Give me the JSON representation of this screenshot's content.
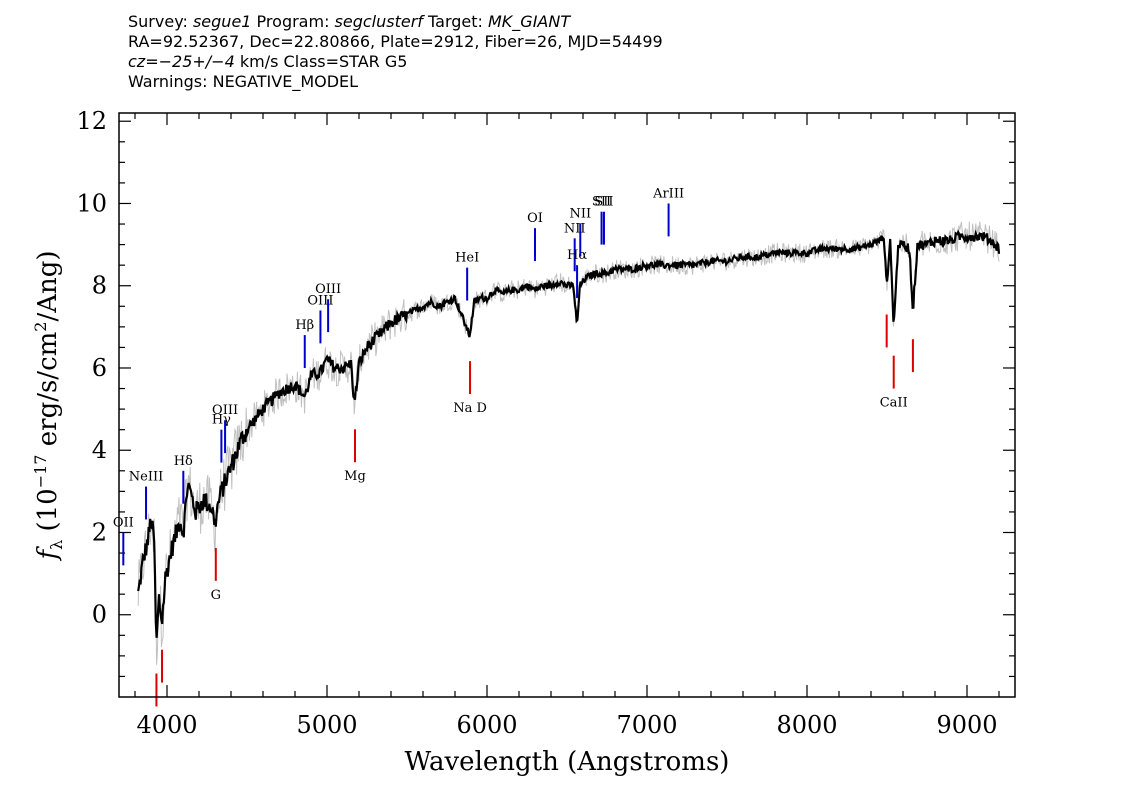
{
  "header": {
    "survey_label": "Survey: ",
    "survey": "segue1",
    "program_label": " Program: ",
    "program": "segclusterf",
    "target_label": " Target: ",
    "target": "MK_GIANT",
    "line2": "RA=92.52367, Dec=22.80866, Plate=2912, Fiber=26, MJD=54499",
    "cz_label": "cz=",
    "cz_value": "−25+/−4",
    "cz_rest": " km/s Class=STAR G5",
    "warnings": "Warnings: NEGATIVE_MODEL"
  },
  "chart_data": {
    "type": "line",
    "title": "",
    "xlabel": "Wavelength (Angstroms)",
    "ylabel": "f_λ (10^-17 erg/s/cm^2/Ang)",
    "xlim": [
      3700,
      9300
    ],
    "ylim": [
      -2,
      12.2
    ],
    "x_ticks": [
      4000,
      5000,
      6000,
      7000,
      8000,
      9000
    ],
    "y_ticks": [
      0,
      2,
      4,
      6,
      8,
      10,
      12
    ],
    "grid": false,
    "series": [
      {
        "kind": "model",
        "color": "#000000",
        "x": [
          3820,
          3850,
          3880,
          3900,
          3920,
          3933,
          3950,
          3968,
          3990,
          4030,
          4080,
          4102,
          4130,
          4180,
          4230,
          4280,
          4300,
          4320,
          4340,
          4380,
          4420,
          4470,
          4520,
          4600,
          4700,
          4800,
          4861,
          4900,
          4960,
          5000,
          5050,
          5100,
          5150,
          5172,
          5183,
          5200,
          5250,
          5300,
          5350,
          5400,
          5450,
          5500,
          5550,
          5600,
          5650,
          5700,
          5750,
          5800,
          5850,
          5890,
          5896,
          5920,
          5960,
          6000,
          6050,
          6100,
          6150,
          6200,
          6250,
          6300,
          6350,
          6400,
          6450,
          6500,
          6540,
          6563,
          6580,
          6620,
          6680,
          6750,
          6800,
          6900,
          7000,
          7100,
          7200,
          7300,
          7400,
          7500,
          7600,
          7700,
          7800,
          7900,
          8000,
          8100,
          8200,
          8300,
          8400,
          8450,
          8480,
          8498,
          8520,
          8542,
          8570,
          8600,
          8640,
          8662,
          8690,
          8750,
          8800,
          8850,
          8900,
          8950,
          9000,
          9050,
          9100,
          9150,
          9200
        ],
        "y": [
          0.5,
          1.3,
          1.8,
          2.3,
          1.8,
          -0.8,
          0.4,
          -0.2,
          0.9,
          1.6,
          2.3,
          2.0,
          3.2,
          2.5,
          2.8,
          2.6,
          2.2,
          2.7,
          3.0,
          3.4,
          3.8,
          4.3,
          4.6,
          5.0,
          5.4,
          5.6,
          5.3,
          5.8,
          5.9,
          6.2,
          6.0,
          6.0,
          6.1,
          5.1,
          5.5,
          6.1,
          6.5,
          6.7,
          6.9,
          7.1,
          7.2,
          7.3,
          7.4,
          7.5,
          7.6,
          7.5,
          7.6,
          7.7,
          7.2,
          6.8,
          6.9,
          7.6,
          7.7,
          7.7,
          7.9,
          7.8,
          7.9,
          7.9,
          8.0,
          7.9,
          8.0,
          8.0,
          8.1,
          8.0,
          8.0,
          7.0,
          8.0,
          8.2,
          8.3,
          8.3,
          8.4,
          8.4,
          8.5,
          8.5,
          8.5,
          8.5,
          8.6,
          8.6,
          8.7,
          8.7,
          8.8,
          8.8,
          8.8,
          8.9,
          8.9,
          8.9,
          9.0,
          9.1,
          9.2,
          8.0,
          9.1,
          7.0,
          9.0,
          9.0,
          8.9,
          7.4,
          9.0,
          9.0,
          9.1,
          9.1,
          9.1,
          9.2,
          9.2,
          9.2,
          9.2,
          9.1,
          8.9
        ]
      }
    ],
    "emission_lines": [
      {
        "name": "OII",
        "x": 3727
      },
      {
        "name": "NeIII",
        "x": 3869
      },
      {
        "name": "Hδ",
        "x": 4102
      },
      {
        "name": "Hγ",
        "x": 4340
      },
      {
        "name": "OIII",
        "x": 4363
      },
      {
        "name": "Hβ",
        "x": 4861
      },
      {
        "name": "OIII",
        "x": 4959
      },
      {
        "name": "OIII",
        "x": 5007
      },
      {
        "name": "HeI",
        "x": 5876
      },
      {
        "name": "OI",
        "x": 6300
      },
      {
        "name": "NII",
        "x": 6548
      },
      {
        "name": "Hα",
        "x": 6563
      },
      {
        "name": "NII",
        "x": 6583
      },
      {
        "name": "SII",
        "x": 6716
      },
      {
        "name": "SII",
        "x": 6731
      },
      {
        "name": "ArIII",
        "x": 7135
      }
    ],
    "absorption_lines": [
      {
        "name": "",
        "x": 3934
      },
      {
        "name": "",
        "x": 3969
      },
      {
        "name": "G",
        "x": 4305
      },
      {
        "name": "Mg",
        "x": 5175
      },
      {
        "name": "Na D",
        "x": 5894
      },
      {
        "name": "",
        "x": 8498
      },
      {
        "name": "CaII",
        "x": 8542
      },
      {
        "name": "",
        "x": 8662
      }
    ]
  },
  "colors": {
    "flux_error": "#c0c0c0",
    "model": "#000000",
    "emission": "#0000cc",
    "absorption": "#dd0000"
  }
}
